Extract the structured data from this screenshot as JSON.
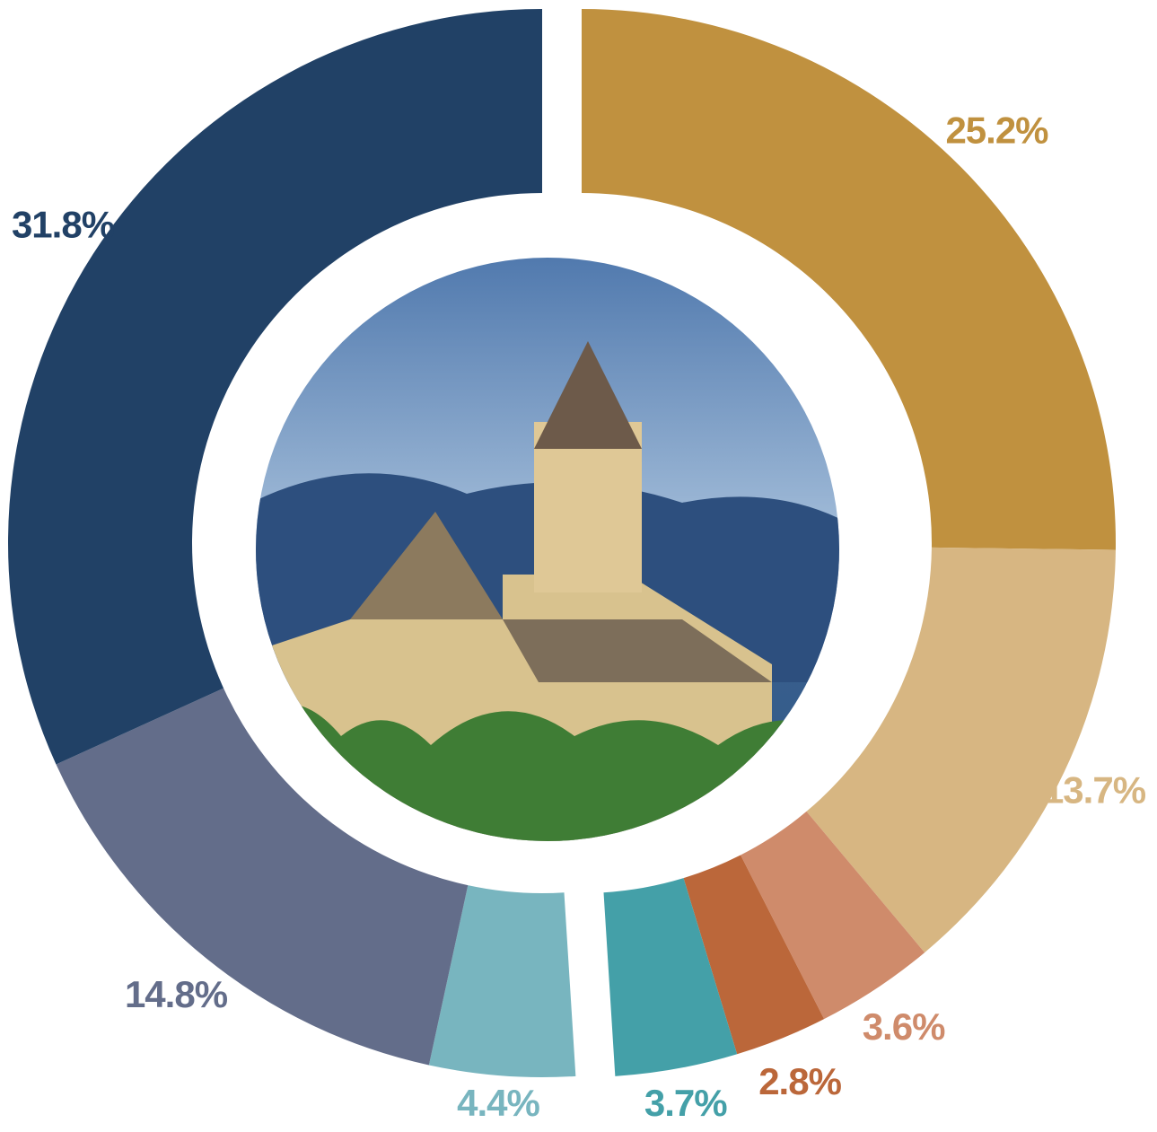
{
  "chart_data": {
    "type": "donut",
    "values": [
      25.2,
      13.7,
      3.6,
      2.8,
      3.7,
      4.4,
      14.8,
      31.8
    ],
    "value_labels": [
      "25.2%",
      "13.7%",
      "3.6%",
      "2.8%",
      "3.7%",
      "4.4%",
      "14.8%",
      "31.8%"
    ],
    "colors": [
      "#c0913f",
      "#d7b682",
      "#cf8b6b",
      "#bb673a",
      "#44a0a8",
      "#78b5bf",
      "#636d8a",
      "#214166"
    ]
  }
}
